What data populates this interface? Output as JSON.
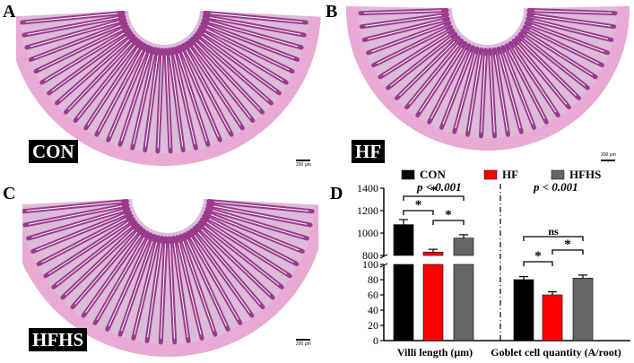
{
  "panels": {
    "A": {
      "letter": "A",
      "group": "CON",
      "scale": "200 μm"
    },
    "B": {
      "letter": "B",
      "group": "HF",
      "scale": "200 μm"
    },
    "C": {
      "letter": "C",
      "group": "HFHS",
      "scale": "200 μm"
    },
    "D": {
      "letter": "D"
    }
  },
  "colors": {
    "tissue": "#e8a9d3",
    "villi": "#9b3b8e",
    "lumen": "#ffffff"
  },
  "chart_data": {
    "type": "bar",
    "categories": [
      "Villi length (μm)",
      "Goblet cell quantity (A/root)"
    ],
    "series": [
      {
        "name": "CON",
        "color": "#000000",
        "values": [
          1075,
          80
        ],
        "errors": [
          45,
          4
        ]
      },
      {
        "name": "HF",
        "color": "#ff0000",
        "values": [
          830,
          60
        ],
        "errors": [
          25,
          4
        ]
      },
      {
        "name": "HFHS",
        "color": "#666666",
        "values": [
          955,
          82
        ],
        "errors": [
          30,
          4
        ]
      }
    ],
    "y_axis": {
      "broken": true,
      "lower_range": [
        0,
        100
      ],
      "upper_range": [
        800,
        1400
      ],
      "ticks_lower": [
        "0",
        "20",
        "40",
        "60",
        "80",
        "100"
      ],
      "ticks_upper": [
        "800",
        "1000",
        "1200",
        "1400"
      ]
    },
    "annotations": {
      "pvalues": [
        "p < 0.001",
        "p < 0.001"
      ],
      "villi_sig": [
        "*",
        "*",
        "*"
      ],
      "goblet_sig": [
        "*",
        "*",
        "ns"
      ]
    },
    "legend_position": "top"
  }
}
